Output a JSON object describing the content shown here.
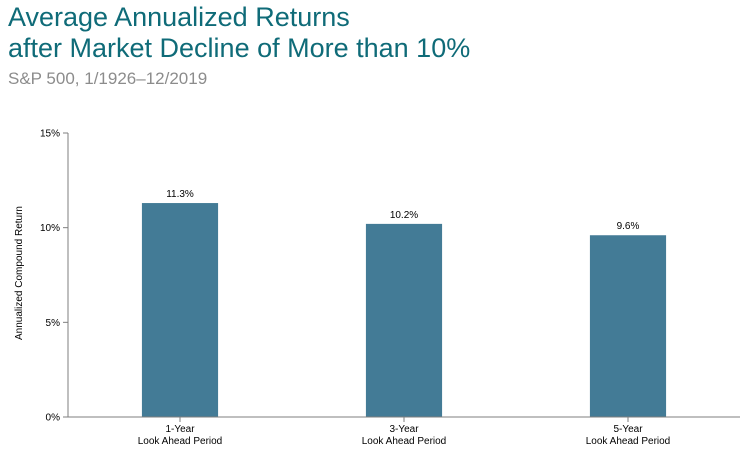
{
  "title": "Average Annualized Returns\nafter Market Decline of More than 10%",
  "subtitle": "S&P 500, 1/1926–12/2019",
  "chart_data": {
    "type": "bar",
    "categories": [
      [
        "1-Year",
        "Look Ahead Period"
      ],
      [
        "3-Year",
        "Look Ahead Period"
      ],
      [
        "5-Year",
        "Look Ahead Period"
      ]
    ],
    "values": [
      11.3,
      10.2,
      9.6
    ],
    "data_labels": [
      "11.3%",
      "10.2%",
      "9.6%"
    ],
    "ylabel": "Annualized Compound Return",
    "xlabel": "",
    "ylim": [
      0,
      15
    ],
    "yticks": [
      0,
      5,
      10,
      15
    ],
    "ytick_labels": [
      "0%",
      "5%",
      "10%",
      "15%"
    ],
    "grid": false,
    "bar_color": "#437b96",
    "axis_color": "#7f7f7f"
  }
}
